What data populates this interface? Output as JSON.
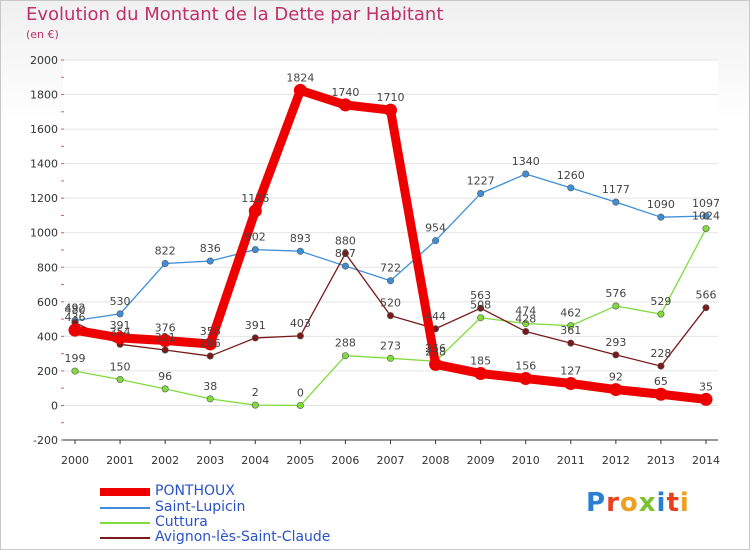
{
  "chart_data": {
    "type": "line",
    "title": "Evolution du Montant de la Dette par Habitant",
    "subtitle": "(en €)",
    "categories": [
      "2000",
      "2001",
      "2002",
      "2003",
      "2004",
      "2005",
      "2006",
      "2007",
      "2008",
      "2009",
      "2010",
      "2011",
      "2012",
      "2013",
      "2014"
    ],
    "ylim": [
      -200,
      2000
    ],
    "yticks": [
      -200,
      0,
      200,
      400,
      600,
      800,
      1000,
      1200,
      1400,
      1600,
      1800,
      2000
    ],
    "series": [
      {
        "name": "PONTHOUX",
        "color": "#ee0000",
        "values": [
          436,
          391,
          376,
          356,
          1126,
          1824,
          1740,
          1710,
          238,
          185,
          156,
          127,
          92,
          65,
          35
        ]
      },
      {
        "name": "Saint-Lupicin",
        "color": "#3f8fd8",
        "values": [
          492,
          530,
          822,
          836,
          902,
          893,
          807,
          722,
          954,
          1227,
          1340,
          1260,
          1177,
          1090,
          1097
        ]
      },
      {
        "name": "Cuttura",
        "color": "#7fdc3c",
        "values": [
          199,
          150,
          96,
          38,
          2,
          0,
          288,
          273,
          256,
          508,
          474,
          462,
          576,
          529,
          1024
        ]
      },
      {
        "name": "Avignon-lès-Saint-Claude",
        "color": "#7a1a1a",
        "values": [
          480,
          354,
          321,
          286,
          391,
          403,
          880,
          520,
          444,
          563,
          428,
          361,
          293,
          228,
          566
        ]
      }
    ]
  },
  "legend": {
    "items": [
      "PONTHOUX",
      "Saint-Lupicin",
      "Cuttura",
      "Avignon-lès-Saint-Claude"
    ]
  },
  "logo": {
    "text": "Proxiti"
  }
}
